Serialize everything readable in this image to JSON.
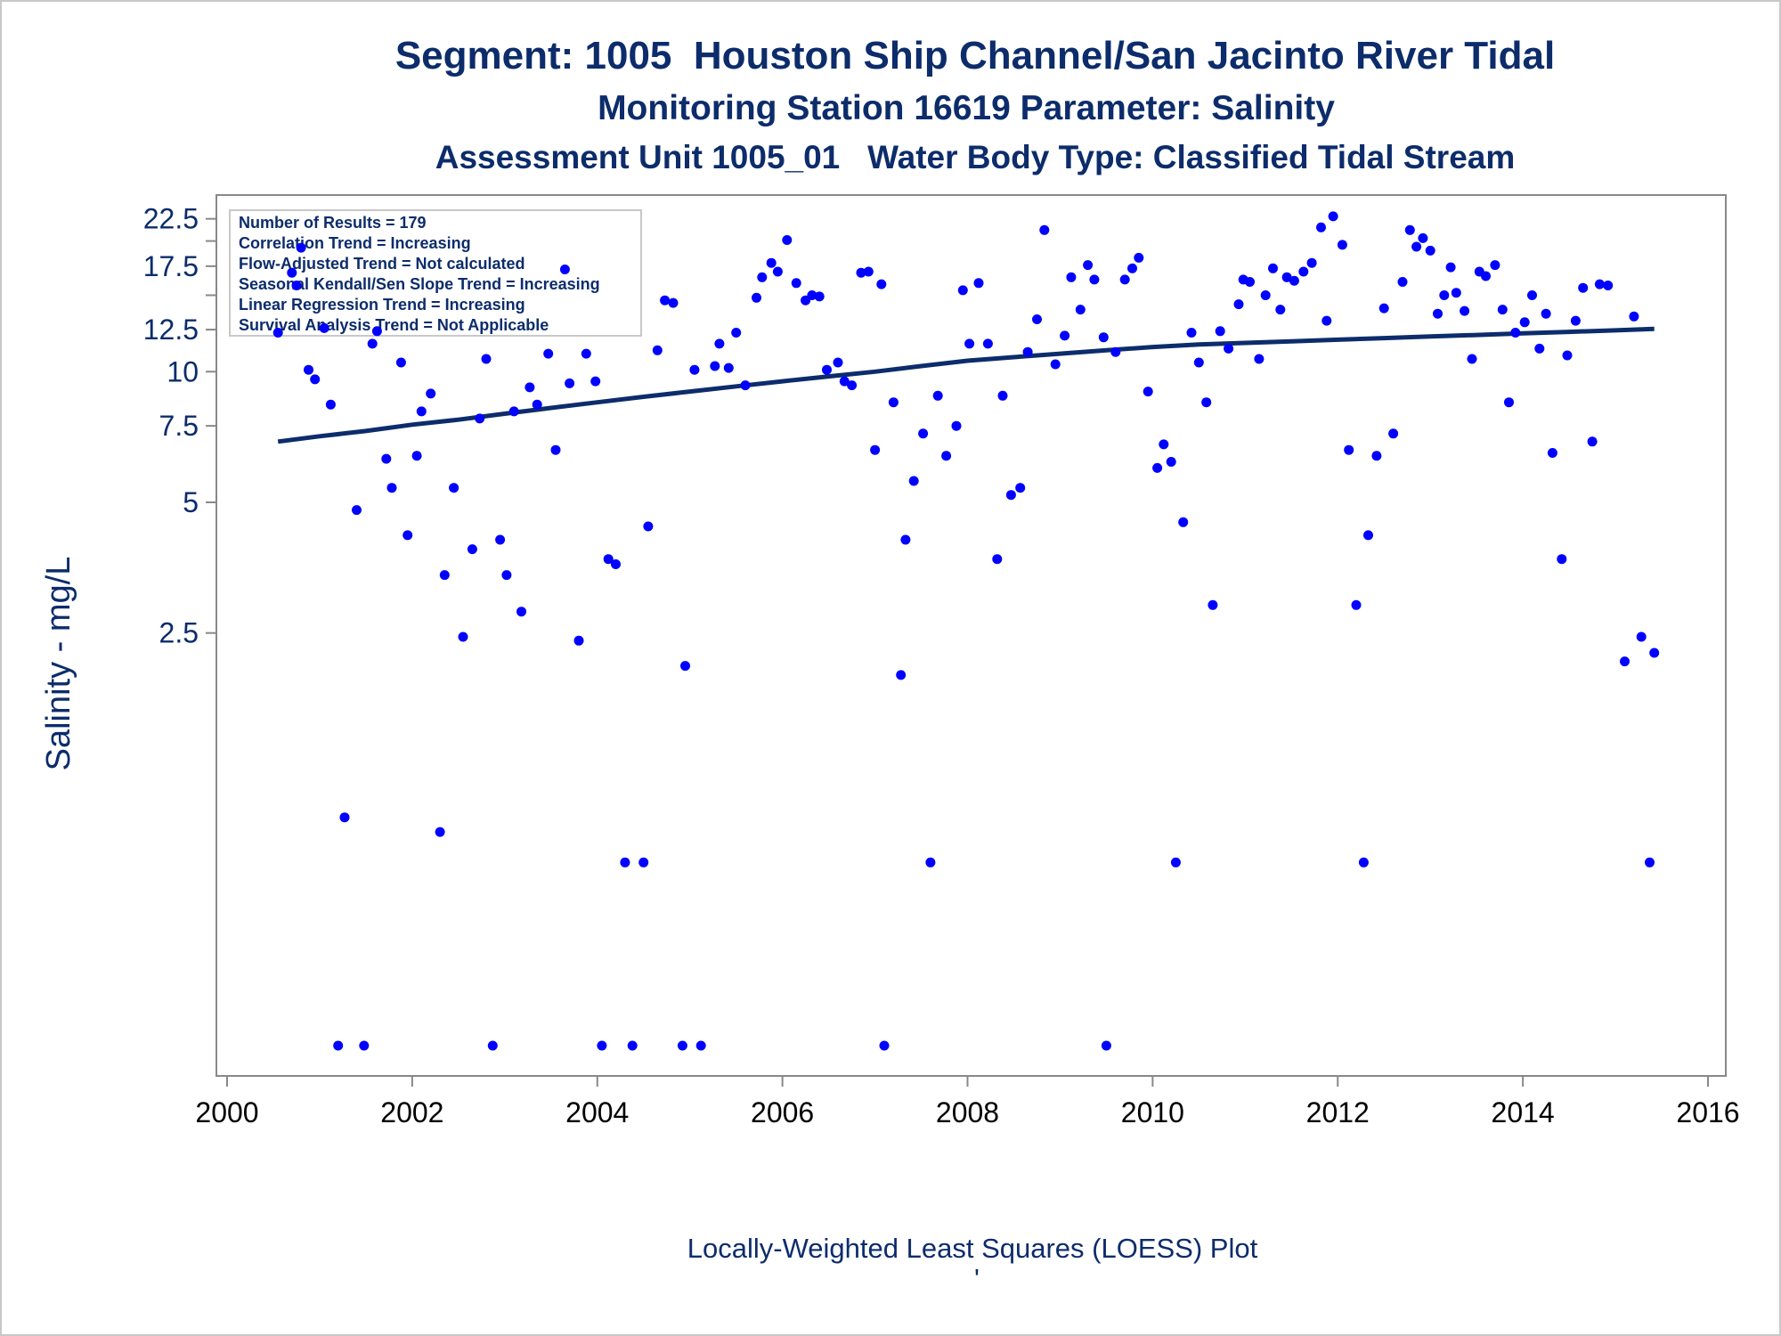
{
  "chart_data": {
    "type": "scatter",
    "title": "Segment: 1005  Houston Ship Channel/San Jacinto River Tidal",
    "subtitle": "Monitoring Station 16619 Parameter: Salinity",
    "subtitle2": "Assessment Unit 1005_01   Water Body Type: Classified Tidal Stream",
    "xlabel": "Locally-Weighted Least Squares (LOESS) Plot",
    "ylabel": "Salinity - mg/L",
    "footnote_mark": "'",
    "x_ticks": [
      "2000",
      "2002",
      "2004",
      "2006",
      "2008",
      "2010",
      "2012",
      "2014",
      "2016"
    ],
    "xlim": [
      2000,
      2016
    ],
    "y_ticks": [
      "2.5",
      "5",
      "7.5",
      "10",
      "12.5",
      "17.5",
      "22.5"
    ],
    "y_scale": "log",
    "ylim": [
      0.25,
      24
    ],
    "grid": false,
    "legend_placement": "top-left",
    "stats_box": [
      "Number of Results = 179",
      "Correlation Trend = Increasing",
      "Flow-Adjusted Trend = Not calculated",
      "Seasonal Kendall/Sen Slope Trend = Increasing",
      "Linear Regression Trend = Increasing",
      "Survival Analysis Trend = Not Applicable"
    ],
    "colors": {
      "points": "#0000ff",
      "trend": "#0c2c6b",
      "text": "#0c2c6b",
      "axis": "#888888"
    },
    "series": [
      {
        "type": "scatter",
        "points": [
          [
            2000.55,
            12.3
          ],
          [
            2000.7,
            16.9
          ],
          [
            2000.75,
            15.8
          ],
          [
            2000.8,
            19.3
          ],
          [
            2000.88,
            10.1
          ],
          [
            2000.95,
            9.6
          ],
          [
            2001.05,
            12.6
          ],
          [
            2001.12,
            8.4
          ],
          [
            2001.2,
            0.28
          ],
          [
            2001.27,
            0.94
          ],
          [
            2001.4,
            4.8
          ],
          [
            2001.48,
            0.28
          ],
          [
            2001.57,
            11.6
          ],
          [
            2001.62,
            12.4
          ],
          [
            2001.72,
            6.3
          ],
          [
            2001.78,
            5.4
          ],
          [
            2001.88,
            10.5
          ],
          [
            2001.95,
            4.2
          ],
          [
            2002.05,
            6.4
          ],
          [
            2002.1,
            8.1
          ],
          [
            2002.2,
            8.9
          ],
          [
            2002.3,
            0.87
          ],
          [
            2002.35,
            3.4
          ],
          [
            2002.45,
            5.4
          ],
          [
            2002.55,
            2.45
          ],
          [
            2002.65,
            3.9
          ],
          [
            2002.73,
            7.8
          ],
          [
            2002.8,
            10.7
          ],
          [
            2002.87,
            0.28
          ],
          [
            2002.95,
            4.1
          ],
          [
            2003.02,
            3.4
          ],
          [
            2003.1,
            8.1
          ],
          [
            2003.18,
            2.8
          ],
          [
            2003.27,
            9.2
          ],
          [
            2003.35,
            8.4
          ],
          [
            2003.47,
            11.0
          ],
          [
            2003.55,
            6.6
          ],
          [
            2003.65,
            17.2
          ],
          [
            2003.7,
            9.4
          ],
          [
            2003.8,
            2.4
          ],
          [
            2003.88,
            11.0
          ],
          [
            2003.98,
            9.5
          ],
          [
            2004.05,
            0.28
          ],
          [
            2004.12,
            3.7
          ],
          [
            2004.2,
            3.6
          ],
          [
            2004.3,
            0.74
          ],
          [
            2004.38,
            0.28
          ],
          [
            2004.5,
            0.74
          ],
          [
            2004.55,
            4.4
          ],
          [
            2004.65,
            11.2
          ],
          [
            2004.73,
            14.6
          ],
          [
            2004.82,
            14.4
          ],
          [
            2004.92,
            0.28
          ],
          [
            2004.95,
            2.1
          ],
          [
            2005.05,
            10.1
          ],
          [
            2005.12,
            0.28
          ],
          [
            2005.27,
            10.3
          ],
          [
            2005.32,
            11.6
          ],
          [
            2005.42,
            10.2
          ],
          [
            2005.5,
            12.3
          ],
          [
            2005.6,
            9.3
          ],
          [
            2005.72,
            14.8
          ],
          [
            2005.78,
            16.5
          ],
          [
            2005.88,
            17.8
          ],
          [
            2005.95,
            17.0
          ],
          [
            2006.05,
            20.1
          ],
          [
            2006.15,
            16.0
          ],
          [
            2006.25,
            14.6
          ],
          [
            2006.32,
            15.0
          ],
          [
            2006.4,
            14.9
          ],
          [
            2006.48,
            10.1
          ],
          [
            2006.6,
            10.5
          ],
          [
            2006.67,
            9.5
          ],
          [
            2006.75,
            9.3
          ],
          [
            2006.85,
            16.9
          ],
          [
            2006.93,
            17.0
          ],
          [
            2007.0,
            6.6
          ],
          [
            2007.07,
            15.9
          ],
          [
            2007.1,
            0.28
          ],
          [
            2007.2,
            8.5
          ],
          [
            2007.28,
            2.0
          ],
          [
            2007.33,
            4.1
          ],
          [
            2007.42,
            5.6
          ],
          [
            2007.52,
            7.2
          ],
          [
            2007.6,
            0.74
          ],
          [
            2007.68,
            8.8
          ],
          [
            2007.77,
            6.4
          ],
          [
            2007.88,
            7.5
          ],
          [
            2007.95,
            15.4
          ],
          [
            2008.02,
            11.6
          ],
          [
            2008.12,
            16.0
          ],
          [
            2008.22,
            11.6
          ],
          [
            2008.32,
            3.7
          ],
          [
            2008.38,
            8.8
          ],
          [
            2008.47,
            5.2
          ],
          [
            2008.57,
            5.4
          ],
          [
            2008.65,
            11.1
          ],
          [
            2008.75,
            13.2
          ],
          [
            2008.83,
            21.2
          ],
          [
            2008.95,
            10.4
          ],
          [
            2009.05,
            12.1
          ],
          [
            2009.12,
            16.5
          ],
          [
            2009.22,
            13.9
          ],
          [
            2009.3,
            17.6
          ],
          [
            2009.37,
            16.3
          ],
          [
            2009.47,
            12.0
          ],
          [
            2009.5,
            0.28
          ],
          [
            2009.6,
            11.1
          ],
          [
            2009.7,
            16.3
          ],
          [
            2009.78,
            17.3
          ],
          [
            2009.85,
            18.3
          ],
          [
            2009.95,
            9.0
          ],
          [
            2010.05,
            6.0
          ],
          [
            2010.12,
            6.8
          ],
          [
            2010.2,
            6.2
          ],
          [
            2010.25,
            0.74
          ],
          [
            2010.33,
            4.5
          ],
          [
            2010.42,
            12.3
          ],
          [
            2010.5,
            10.5
          ],
          [
            2010.58,
            8.5
          ],
          [
            2010.65,
            2.9
          ],
          [
            2010.73,
            12.4
          ],
          [
            2010.82,
            11.3
          ],
          [
            2010.93,
            14.3
          ],
          [
            2010.98,
            16.3
          ],
          [
            2011.05,
            16.1
          ],
          [
            2011.15,
            10.7
          ],
          [
            2011.22,
            15.0
          ],
          [
            2011.3,
            17.3
          ],
          [
            2011.38,
            13.9
          ],
          [
            2011.45,
            16.5
          ],
          [
            2011.53,
            16.2
          ],
          [
            2011.63,
            17.0
          ],
          [
            2011.72,
            17.8
          ],
          [
            2011.82,
            21.5
          ],
          [
            2011.88,
            13.1
          ],
          [
            2011.95,
            22.8
          ],
          [
            2012.05,
            19.6
          ],
          [
            2012.12,
            6.6
          ],
          [
            2012.2,
            2.9
          ],
          [
            2012.28,
            0.74
          ],
          [
            2012.33,
            4.2
          ],
          [
            2012.42,
            6.4
          ],
          [
            2012.5,
            14.0
          ],
          [
            2012.6,
            7.2
          ],
          [
            2012.7,
            16.1
          ],
          [
            2012.78,
            21.2
          ],
          [
            2012.85,
            19.4
          ],
          [
            2012.92,
            20.3
          ],
          [
            2013.0,
            19.0
          ],
          [
            2013.08,
            13.6
          ],
          [
            2013.15,
            15.0
          ],
          [
            2013.22,
            17.4
          ],
          [
            2013.28,
            15.2
          ],
          [
            2013.37,
            13.8
          ],
          [
            2013.45,
            10.7
          ],
          [
            2013.53,
            17.0
          ],
          [
            2013.6,
            16.6
          ],
          [
            2013.7,
            17.6
          ],
          [
            2013.78,
            13.9
          ],
          [
            2013.85,
            8.5
          ],
          [
            2013.92,
            12.3
          ],
          [
            2014.02,
            13.0
          ],
          [
            2014.1,
            15.0
          ],
          [
            2014.18,
            11.3
          ],
          [
            2014.25,
            13.6
          ],
          [
            2014.32,
            6.5
          ],
          [
            2014.42,
            3.7
          ],
          [
            2014.48,
            10.9
          ],
          [
            2014.57,
            13.1
          ],
          [
            2014.65,
            15.6
          ],
          [
            2014.75,
            6.9
          ],
          [
            2014.83,
            15.9
          ],
          [
            2014.92,
            15.8
          ],
          [
            2015.1,
            2.15
          ],
          [
            2015.2,
            13.4
          ],
          [
            2015.28,
            2.45
          ],
          [
            2015.37,
            0.74
          ],
          [
            2015.42,
            2.25
          ]
        ]
      },
      {
        "type": "line",
        "points": [
          [
            2000.55,
            6.9
          ],
          [
            2001.0,
            7.1
          ],
          [
            2001.5,
            7.3
          ],
          [
            2002.0,
            7.55
          ],
          [
            2002.5,
            7.75
          ],
          [
            2003.0,
            8.0
          ],
          [
            2003.5,
            8.25
          ],
          [
            2004.0,
            8.5
          ],
          [
            2004.5,
            8.75
          ],
          [
            2005.0,
            9.0
          ],
          [
            2005.5,
            9.25
          ],
          [
            2006.0,
            9.5
          ],
          [
            2006.5,
            9.75
          ],
          [
            2007.0,
            10.0
          ],
          [
            2007.5,
            10.3
          ],
          [
            2008.0,
            10.6
          ],
          [
            2008.5,
            10.8
          ],
          [
            2009.0,
            11.0
          ],
          [
            2009.5,
            11.2
          ],
          [
            2010.0,
            11.4
          ],
          [
            2010.5,
            11.55
          ],
          [
            2011.0,
            11.65
          ],
          [
            2011.5,
            11.75
          ],
          [
            2012.0,
            11.85
          ],
          [
            2012.5,
            11.95
          ],
          [
            2013.0,
            12.05
          ],
          [
            2013.5,
            12.15
          ],
          [
            2014.0,
            12.25
          ],
          [
            2014.5,
            12.35
          ],
          [
            2015.0,
            12.45
          ],
          [
            2015.42,
            12.55
          ]
        ]
      }
    ]
  }
}
